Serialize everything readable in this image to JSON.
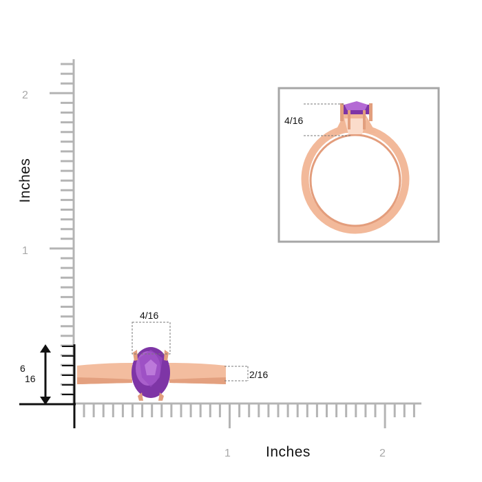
{
  "y_axis": {
    "title": "Inches",
    "tick_labels": [
      "2",
      "1"
    ]
  },
  "x_axis": {
    "title": "Inches",
    "tick_labels": [
      "1",
      "2"
    ]
  },
  "dimensions": {
    "gem_width": "4/16",
    "band_width": "2/16",
    "height_num": "6",
    "height_den": "16",
    "inset_height": "4/16"
  },
  "colors": {
    "ruler": "#b4b4b4",
    "rose_gold": "#f2b99a",
    "rose_gold_dark": "#d98d6c",
    "amethyst": "#8a3fb0",
    "amethyst_light": "#b36ad2",
    "inset_border": "#a6a6a6"
  },
  "icons": {
    "height_arrow": "double-arrow-vertical-icon"
  }
}
